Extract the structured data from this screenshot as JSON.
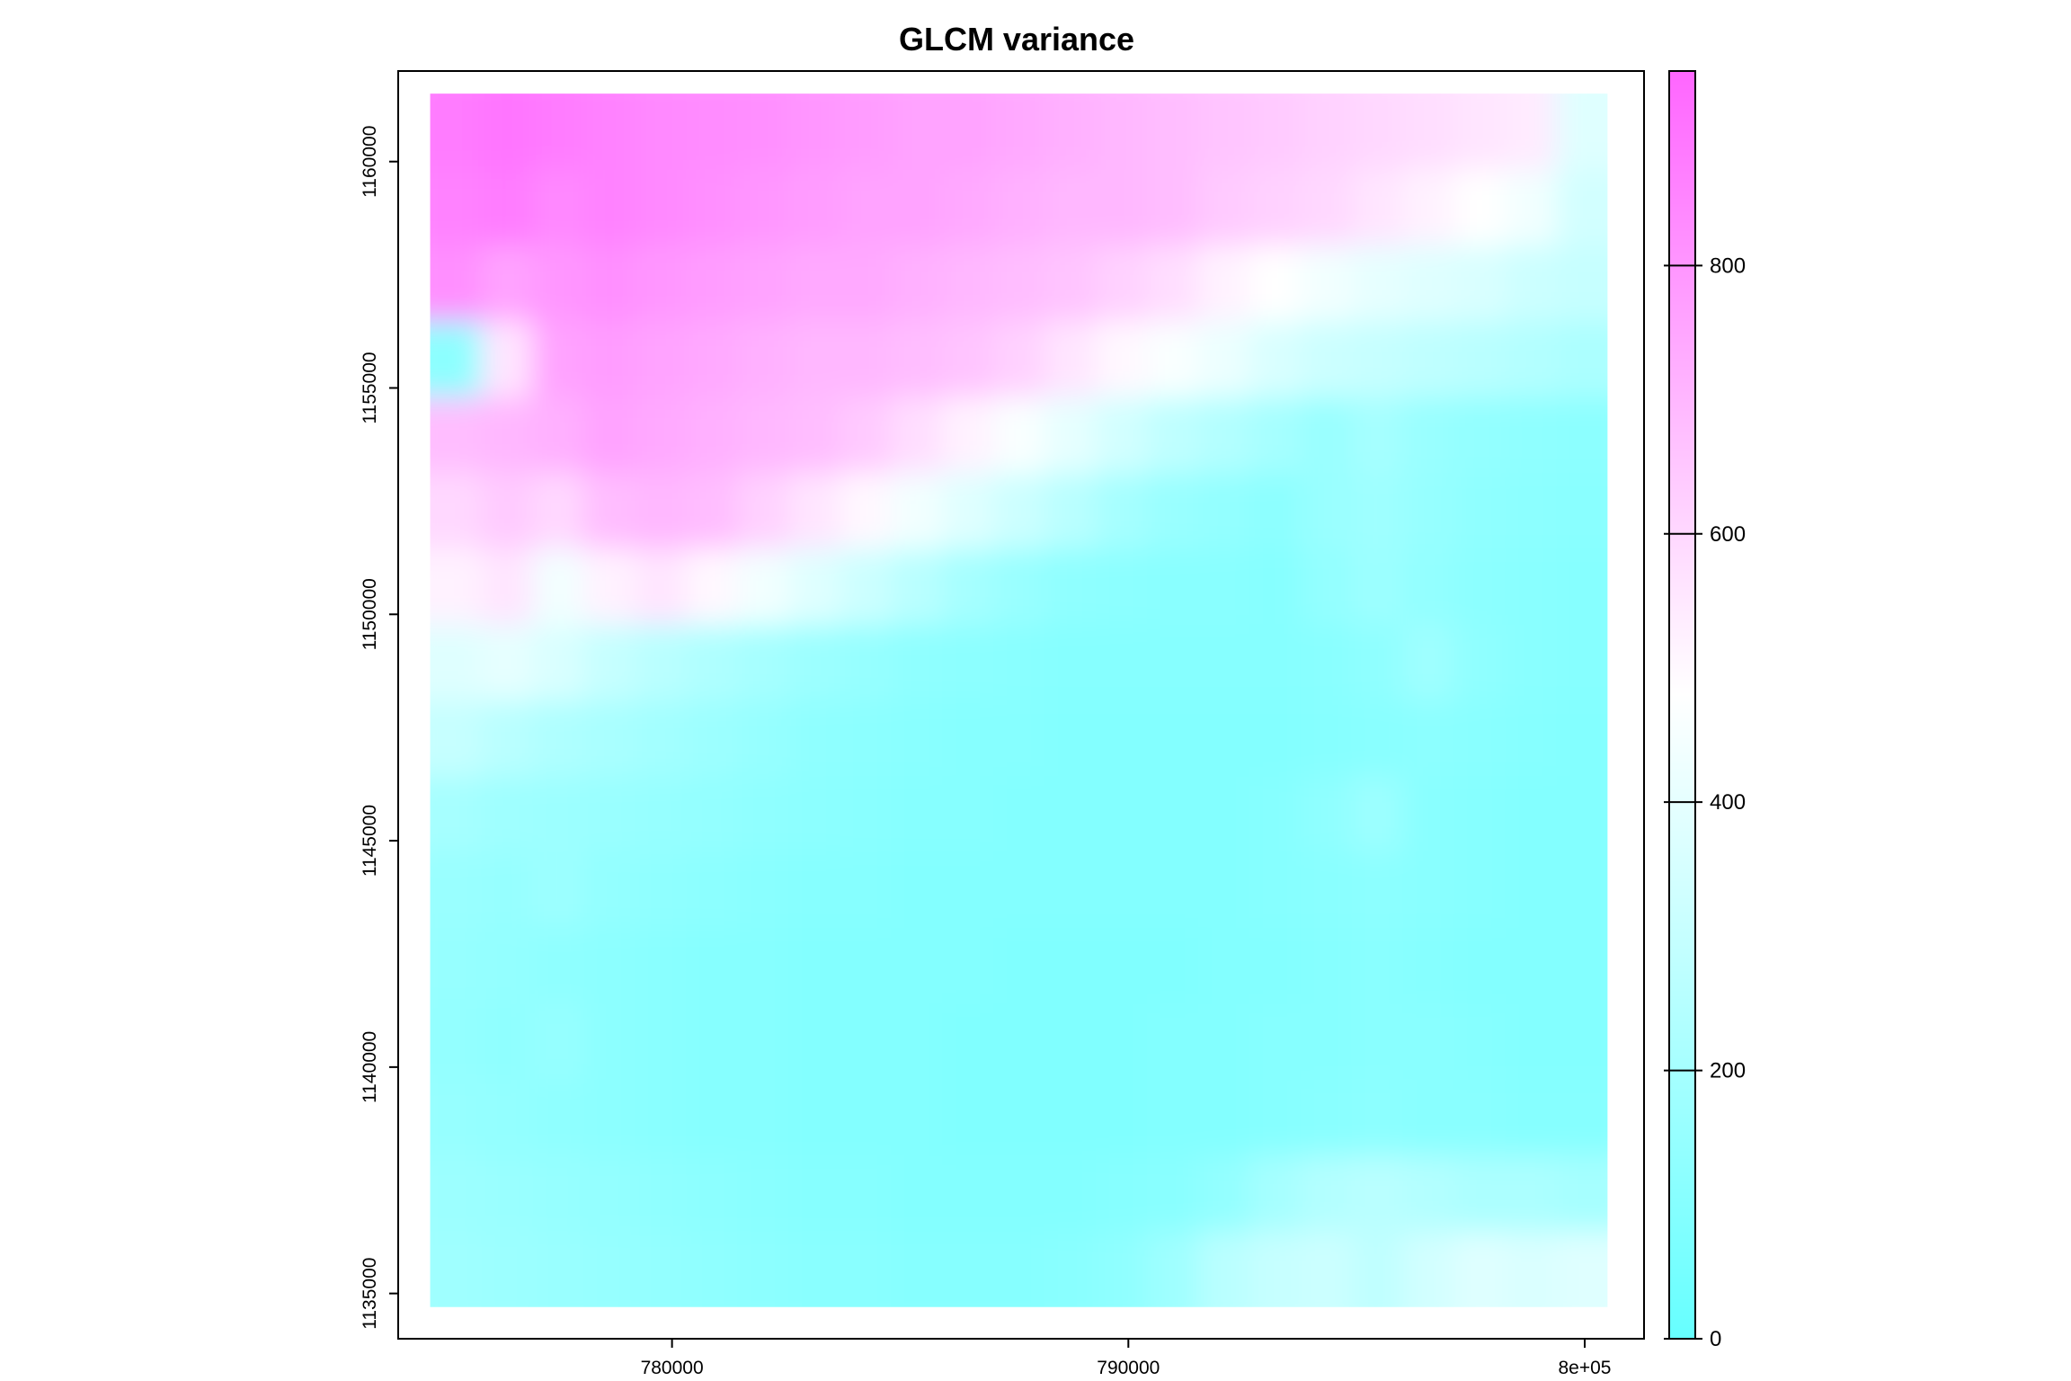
{
  "chart_data": {
    "type": "heatmap",
    "title": "GLCM variance",
    "xlabel": "",
    "ylabel": "",
    "xlim": [
      774000,
      801300
    ],
    "ylim": [
      1134000,
      1162000
    ],
    "raster_extent": {
      "x": [
        774700,
        800500
      ],
      "y": [
        1134700,
        1161500
      ]
    },
    "x_ticks": [
      {
        "value": 780000,
        "label": "780000"
      },
      {
        "value": 790000,
        "label": "790000"
      },
      {
        "value": 800000,
        "label": "8e+05"
      }
    ],
    "y_ticks": [
      {
        "value": 1135000,
        "label": "1135000"
      },
      {
        "value": 1140000,
        "label": "1140000"
      },
      {
        "value": 1145000,
        "label": "1145000"
      },
      {
        "value": 1150000,
        "label": "1150000"
      },
      {
        "value": 1155000,
        "label": "1155000"
      },
      {
        "value": 1160000,
        "label": "1160000"
      }
    ],
    "colorbar": {
      "range": [
        0,
        945
      ],
      "ticks": [
        0,
        200,
        400,
        600,
        800
      ],
      "low_color": "#66ffff",
      "mid_color": "#ffffff",
      "mid_value": 480,
      "high_color": "#ff66ff"
    },
    "grid_rows_top_to_bottom": [
      [
        880,
        900,
        880,
        860,
        840,
        830,
        820,
        800,
        780,
        760,
        760,
        740,
        720,
        700,
        680,
        660,
        640,
        620,
        600,
        580,
        560,
        540,
        380
      ],
      [
        860,
        880,
        840,
        860,
        840,
        820,
        800,
        780,
        760,
        760,
        740,
        720,
        700,
        700,
        680,
        640,
        620,
        600,
        560,
        520,
        480,
        440,
        340
      ],
      [
        820,
        760,
        800,
        820,
        800,
        780,
        760,
        740,
        740,
        720,
        700,
        680,
        660,
        620,
        580,
        520,
        480,
        440,
        400,
        380,
        360,
        320,
        300
      ],
      [
        120,
        560,
        760,
        780,
        760,
        740,
        720,
        700,
        700,
        680,
        660,
        620,
        560,
        500,
        460,
        420,
        360,
        320,
        300,
        280,
        260,
        240,
        220
      ],
      [
        680,
        700,
        720,
        760,
        740,
        720,
        700,
        680,
        640,
        580,
        520,
        460,
        400,
        340,
        280,
        240,
        200,
        160,
        200,
        160,
        140,
        130,
        120
      ],
      [
        600,
        640,
        600,
        680,
        700,
        680,
        620,
        560,
        500,
        440,
        380,
        320,
        260,
        200,
        160,
        140,
        120,
        160,
        180,
        150,
        130,
        120,
        110
      ],
      [
        520,
        560,
        440,
        520,
        560,
        500,
        440,
        380,
        320,
        260,
        200,
        160,
        130,
        120,
        110,
        110,
        100,
        140,
        170,
        140,
        120,
        110,
        100
      ],
      [
        380,
        400,
        360,
        300,
        260,
        230,
        200,
        170,
        150,
        130,
        120,
        110,
        100,
        100,
        100,
        100,
        100,
        110,
        130,
        180,
        130,
        110,
        100
      ],
      [
        300,
        260,
        230,
        210,
        190,
        170,
        150,
        130,
        120,
        110,
        100,
        100,
        90,
        90,
        90,
        90,
        90,
        100,
        110,
        120,
        110,
        100,
        90
      ],
      [
        200,
        180,
        170,
        160,
        150,
        140,
        130,
        120,
        110,
        100,
        100,
        90,
        90,
        90,
        90,
        90,
        100,
        130,
        170,
        110,
        100,
        90,
        90
      ],
      [
        160,
        150,
        170,
        140,
        130,
        120,
        110,
        100,
        100,
        90,
        90,
        90,
        90,
        90,
        90,
        90,
        100,
        110,
        120,
        110,
        100,
        90,
        90
      ],
      [
        150,
        140,
        130,
        120,
        110,
        100,
        100,
        90,
        90,
        90,
        90,
        80,
        80,
        80,
        80,
        90,
        90,
        100,
        110,
        100,
        90,
        90,
        90
      ],
      [
        140,
        130,
        150,
        120,
        110,
        100,
        100,
        90,
        90,
        90,
        80,
        80,
        80,
        80,
        90,
        90,
        100,
        100,
        110,
        110,
        100,
        90,
        90
      ],
      [
        150,
        140,
        130,
        120,
        110,
        100,
        100,
        90,
        90,
        90,
        80,
        80,
        80,
        80,
        90,
        90,
        100,
        110,
        120,
        110,
        110,
        100,
        100
      ],
      [
        170,
        160,
        150,
        140,
        130,
        120,
        110,
        100,
        100,
        90,
        90,
        90,
        90,
        100,
        110,
        140,
        200,
        240,
        260,
        240,
        220,
        220,
        200
      ],
      [
        180,
        170,
        160,
        150,
        140,
        130,
        120,
        110,
        110,
        100,
        100,
        100,
        110,
        130,
        180,
        260,
        300,
        320,
        280,
        340,
        380,
        360,
        380
      ]
    ]
  }
}
